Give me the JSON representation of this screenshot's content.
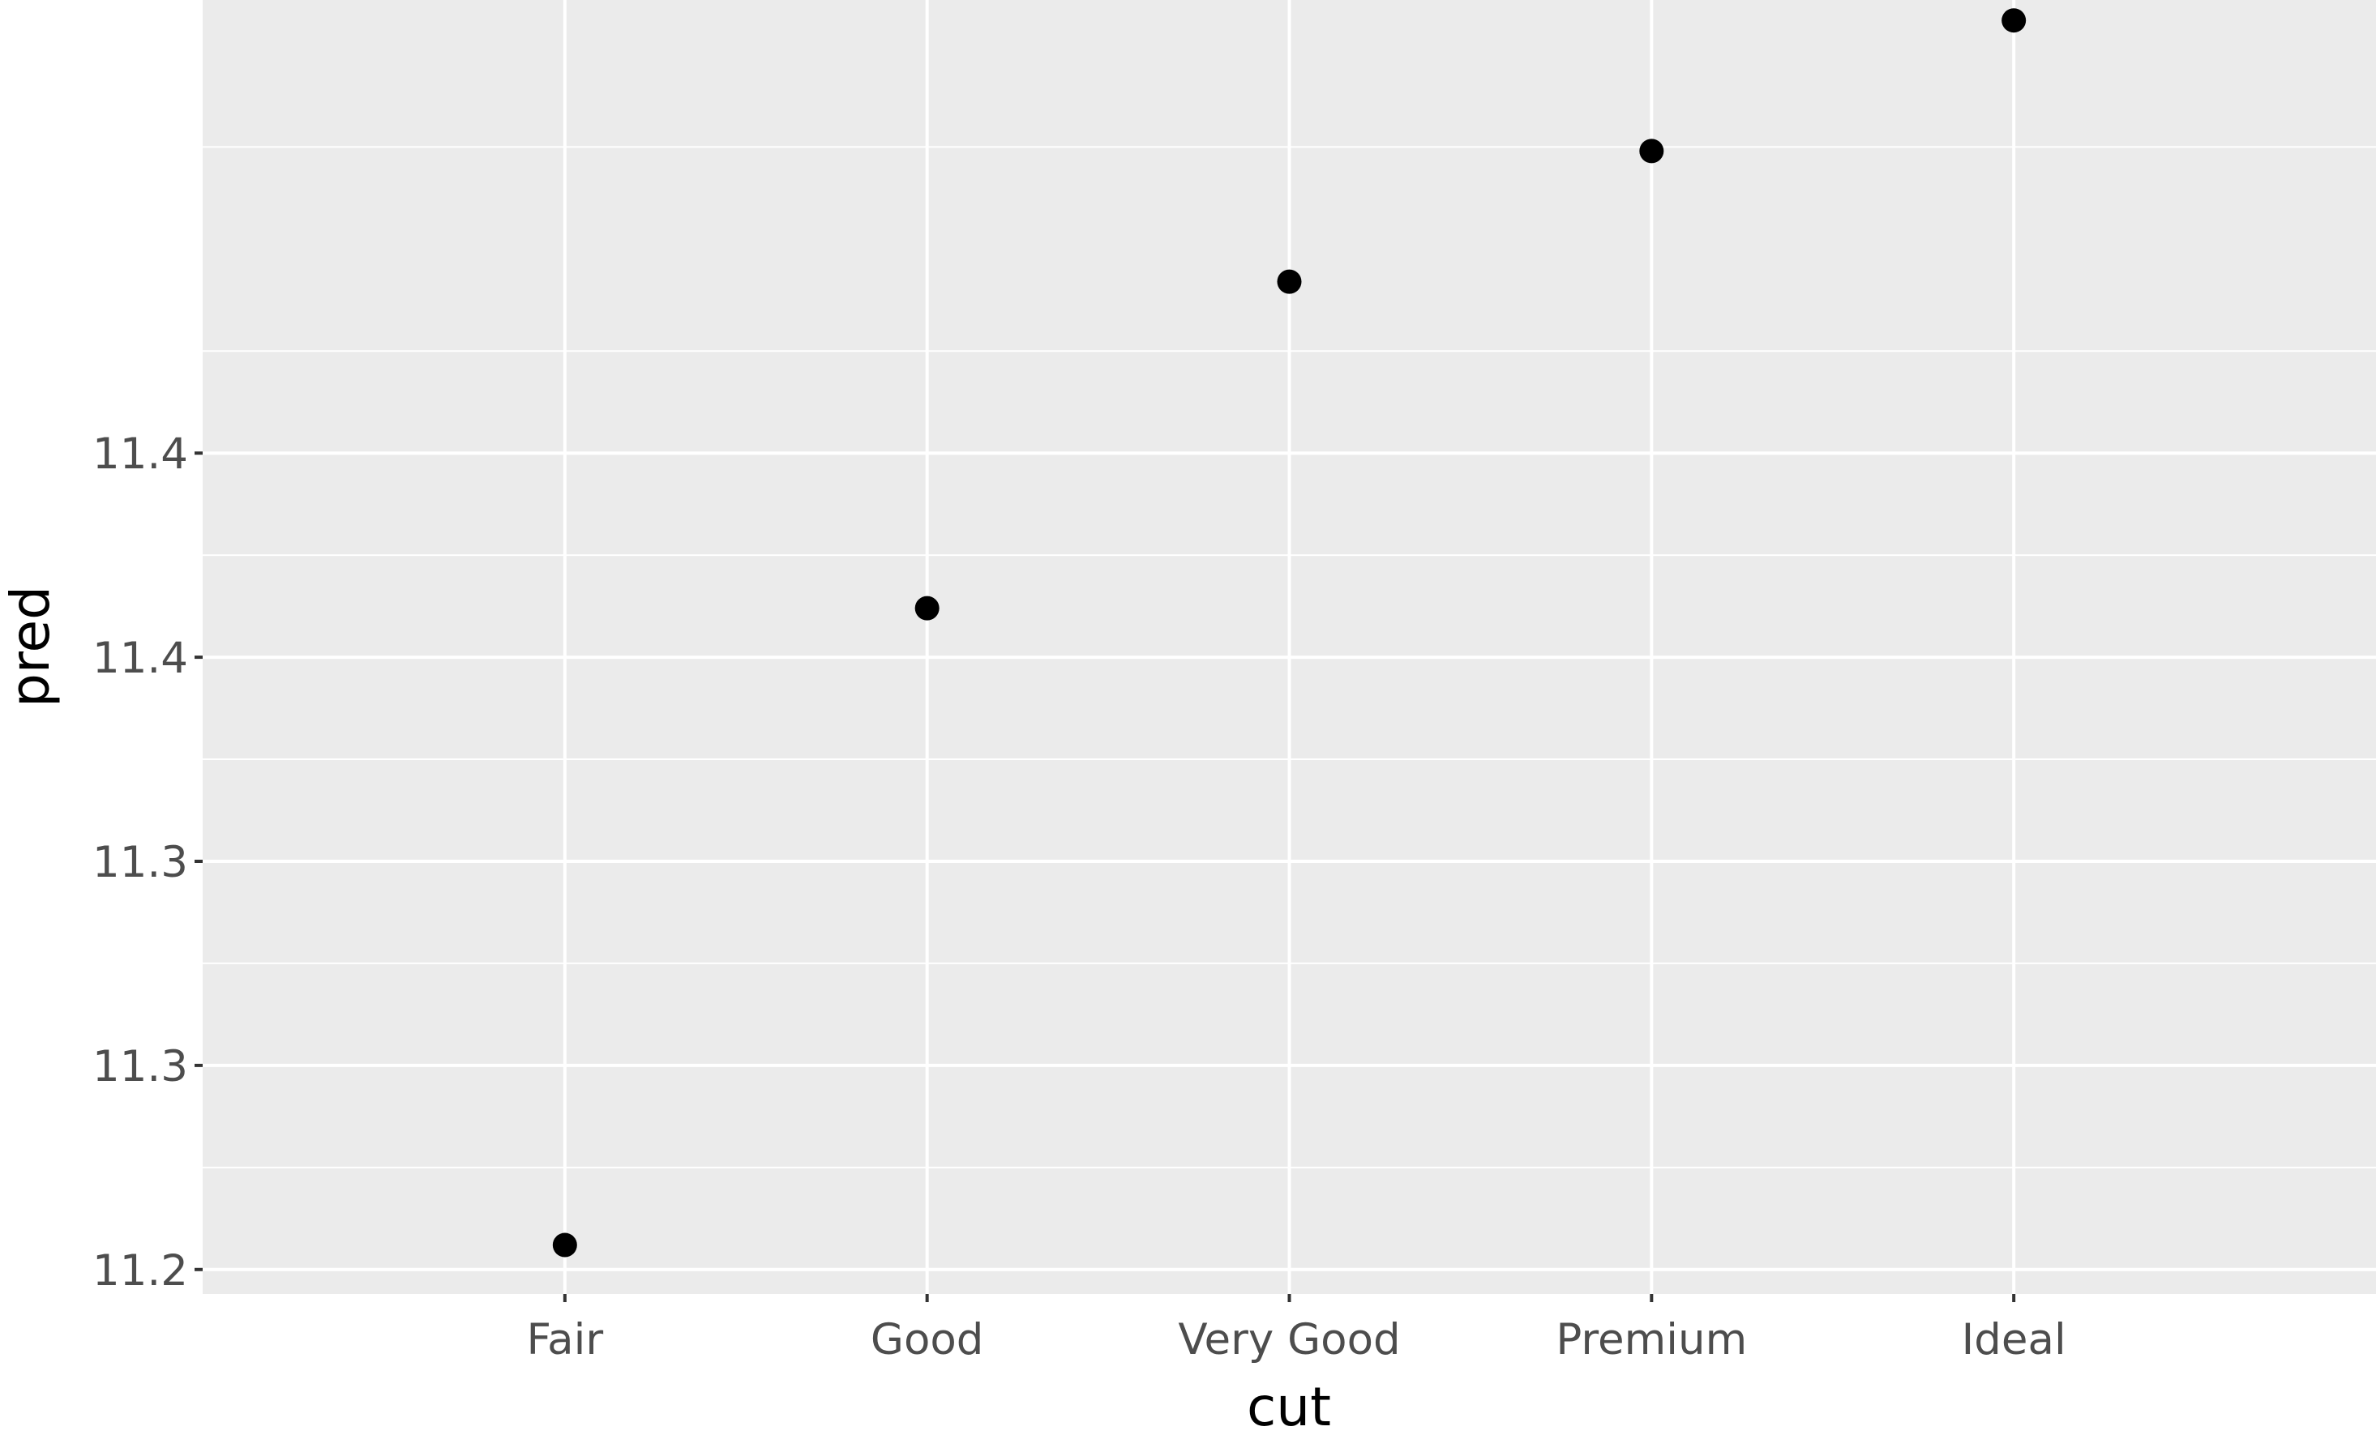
{
  "chart_data": {
    "type": "scatter",
    "xlabel": "cut",
    "ylabel": "pred",
    "categories": [
      "Fair",
      "Good",
      "Very Good",
      "Premium",
      "Ideal"
    ],
    "series": [
      {
        "values": [
          11.206,
          11.362,
          11.442,
          11.474,
          11.506
        ]
      }
    ],
    "yticks": [
      {
        "value": 11.2,
        "label": "11.2"
      },
      {
        "value": 11.25,
        "label": "11.3"
      },
      {
        "value": 11.3,
        "label": "11.3"
      },
      {
        "value": 11.35,
        "label": "11.4"
      },
      {
        "value": 11.4,
        "label": "11.4"
      }
    ],
    "ylim": [
      11.194,
      11.511
    ],
    "grid": true,
    "colors": {
      "panel": "#ebebeb",
      "grid": "#ffffff",
      "point": "#000000",
      "tick": "#333333"
    }
  }
}
